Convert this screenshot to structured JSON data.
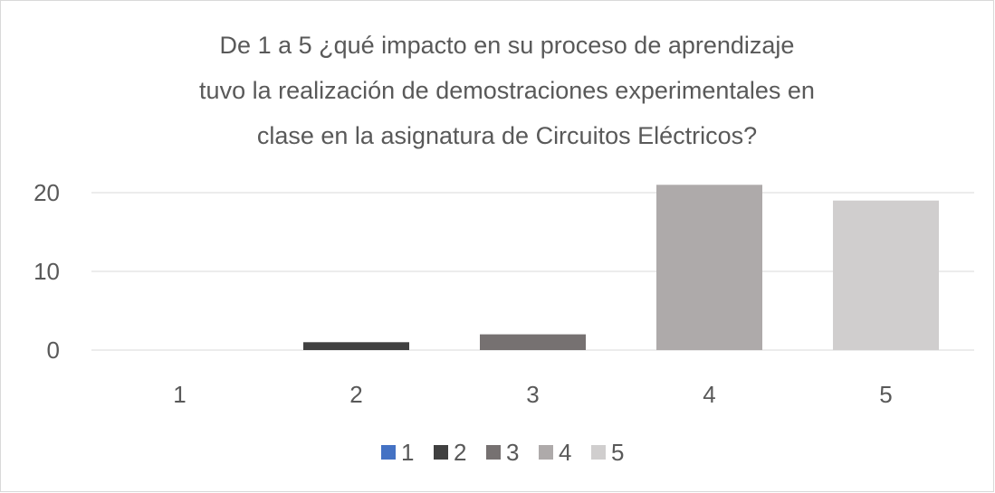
{
  "chart_data": {
    "type": "bar",
    "title": [
      "De 1 a 5 ¿qué impacto en su proceso de aprendizaje",
      "tuvo la realización de demostraciones experimentales en",
      "clase en la asignatura de Circuitos Eléctricos?"
    ],
    "categories": [
      "1",
      "2",
      "3",
      "4",
      "5"
    ],
    "values": [
      0,
      1,
      2,
      21,
      19
    ],
    "colors": [
      "#4472c4",
      "#404040",
      "#767171",
      "#aeaaaa",
      "#d0cece"
    ],
    "ylim": [
      0,
      25
    ],
    "yticks": [
      0,
      10,
      20
    ],
    "grid": true,
    "legend": "bottom"
  }
}
